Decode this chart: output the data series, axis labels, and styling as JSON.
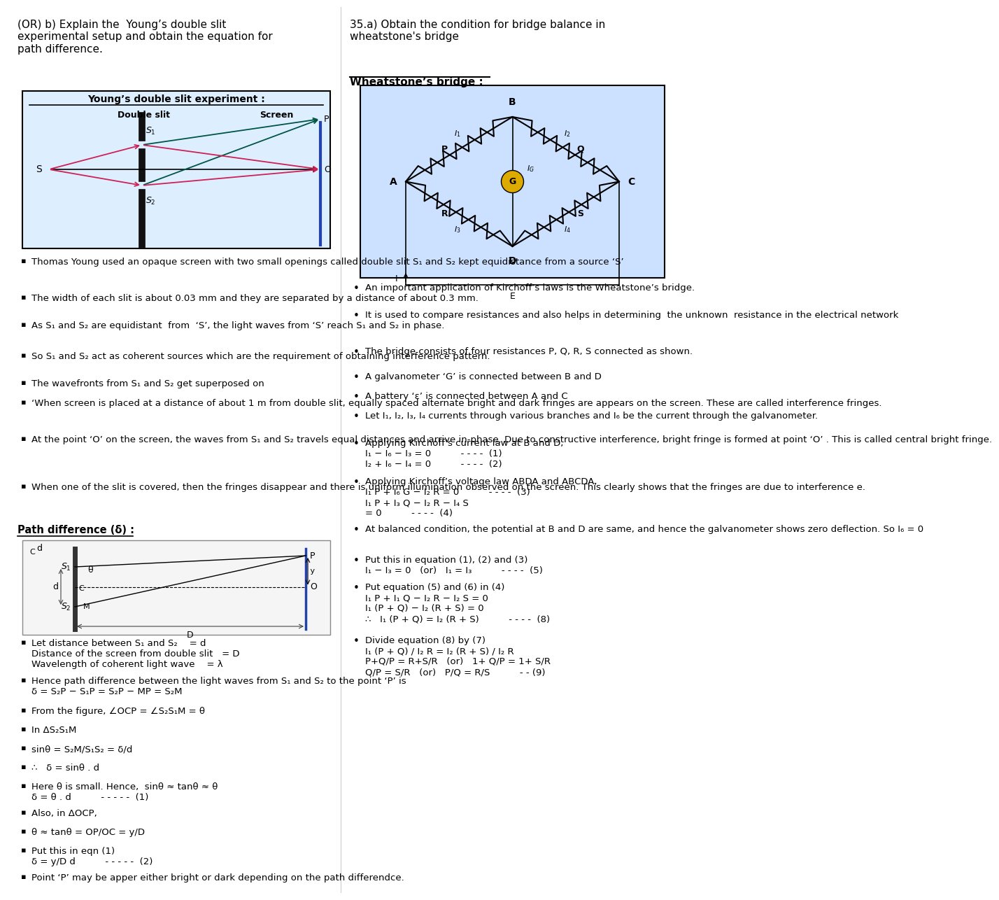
{
  "bg_color": "#ffffff",
  "left_header": "(OR) b) Explain the  Young’s double slit\nexperimental setup and obtain the equation for\npath difference.",
  "right_header": "35.a) Obtain the condition for bridge balance in\nwheatstone's bridge",
  "left_box_title": "Young’s double slit experiment :",
  "wheatstone_title": "Wheatstone’s bridge :",
  "left_bullets": [
    "Thomas Young used an opaque screen with two small openings called double slit S₁ and S₂ kept equidistance from a source ‘S’",
    "The width of each slit is about 0.03 mm and they are separated by a distance of about 0.3 mm.",
    "As S₁ and S₂ are equidistant  from  ‘S’, the light waves from ‘S’ reach S₁ and S₂ in phase.",
    "So S₁ and S₂ act as coherent sources which are the requirement of obtaining interference pattern.",
    "The wavefronts from S₁ and S₂ get superposed on",
    "‘When screen is placed at a distance of about 1 m from double slit, equally spaced alternate bright and dark fringes are appears on the screen. These are called interference fringes.",
    "At the point ‘O’ on the screen, the waves from S₁ and S₂ travels equal distances and arrive in-phase. Due to constructive interference, bright fringe is formed at point ‘O’ . This is called central bright fringe.",
    "When one of the slit is covered, then the fringes disappear and there is uniform illumination observed on the screen. This clearly shows that the fringes are due to interference e."
  ],
  "path_diff_title": "Path difference (δ) :",
  "path_bullets": [
    "Let distance between S₁ and S₂    = d\nDistance of the screen from double slit   = D\nWavelength of coherent light wave    = λ",
    "Hence path difference between the light waves from S₁ and S₂ to the point ‘P’ is\nδ = S₂P − S₁P = S₂P − MP = S₂M",
    "From the figure, ∠OCP = ∠S₂S₁M = θ",
    "In ΔS₂S₁M",
    "sinθ = S₂M/S₁S₂ = δ/d",
    "∴   δ = sinθ . d",
    "Here θ is small. Hence,  sinθ ≈ tanθ ≈ θ\nδ = θ . d          - - - - -  (1)",
    "Also, in ΔOCP,",
    "θ ≈ tanθ = OP/OC = y/D",
    "Put this in eqn (1)\nδ = y/D d          - - - - -  (2)",
    "Point ‘P’ may be apper either bright or dark depending on the path differendce."
  ],
  "right_bullets": [
    "An important application of Kirchoff’s laws is the Wheatstone’s bridge.",
    "It is used to compare resistances and also helps in determining  the unknown  resistance in the electrical network",
    "The bridge consists of four resistances P, Q, R, S connected as shown.",
    "A galvanometer ‘G’ is connected between B and D",
    "A battery ‘ε’ is connected between A and C",
    "Let I₁, I₂, I₃, I₄ currents through various branches and I₆ be the current through the galvanometer.",
    "Applying Kirchoff’s current law at B and D,\nI₁ − I₆ − I₃ = 0          - - - -  (1)\nI₂ + I₆ − I₄ = 0          - - - -  (2)",
    "Applying Kirchoff’s voltage law ABDA and ABCDA,\nI₁ P + I₆ G − I₂ R = 0          - - - -  (3)\nI₁ P + I₃ Q − I₂ R − I₄ S\n= 0          - - - -  (4)",
    "At balanced condition, the potential at B and D are same, and hence the galvanometer shows zero deflection. So I₆ = 0",
    "Put this in equation (1), (2) and (3)\nI₁ − I₃ = 0   (or)   I₁ = I₃          - - - -  (5)",
    "Put equation (5) and (6) in (4)\nI₁ P + I₁ Q − I₂ R − I₂ S = 0\nI₁ (P + Q) − I₂ (R + S) = 0\n∴   I₁ (P + Q) = I₂ (R + S)          - - - -  (8)",
    "Divide equation (8) by (7)\nI₁ (P + Q) / I₂ R = I₂ (R + S) / I₂ R\nP+Q/P = R+S/R   (or)   1+ Q/P = 1+ S/R\nQ/P = S/R   (or)   P/Q = R/S          - - (9)"
  ]
}
